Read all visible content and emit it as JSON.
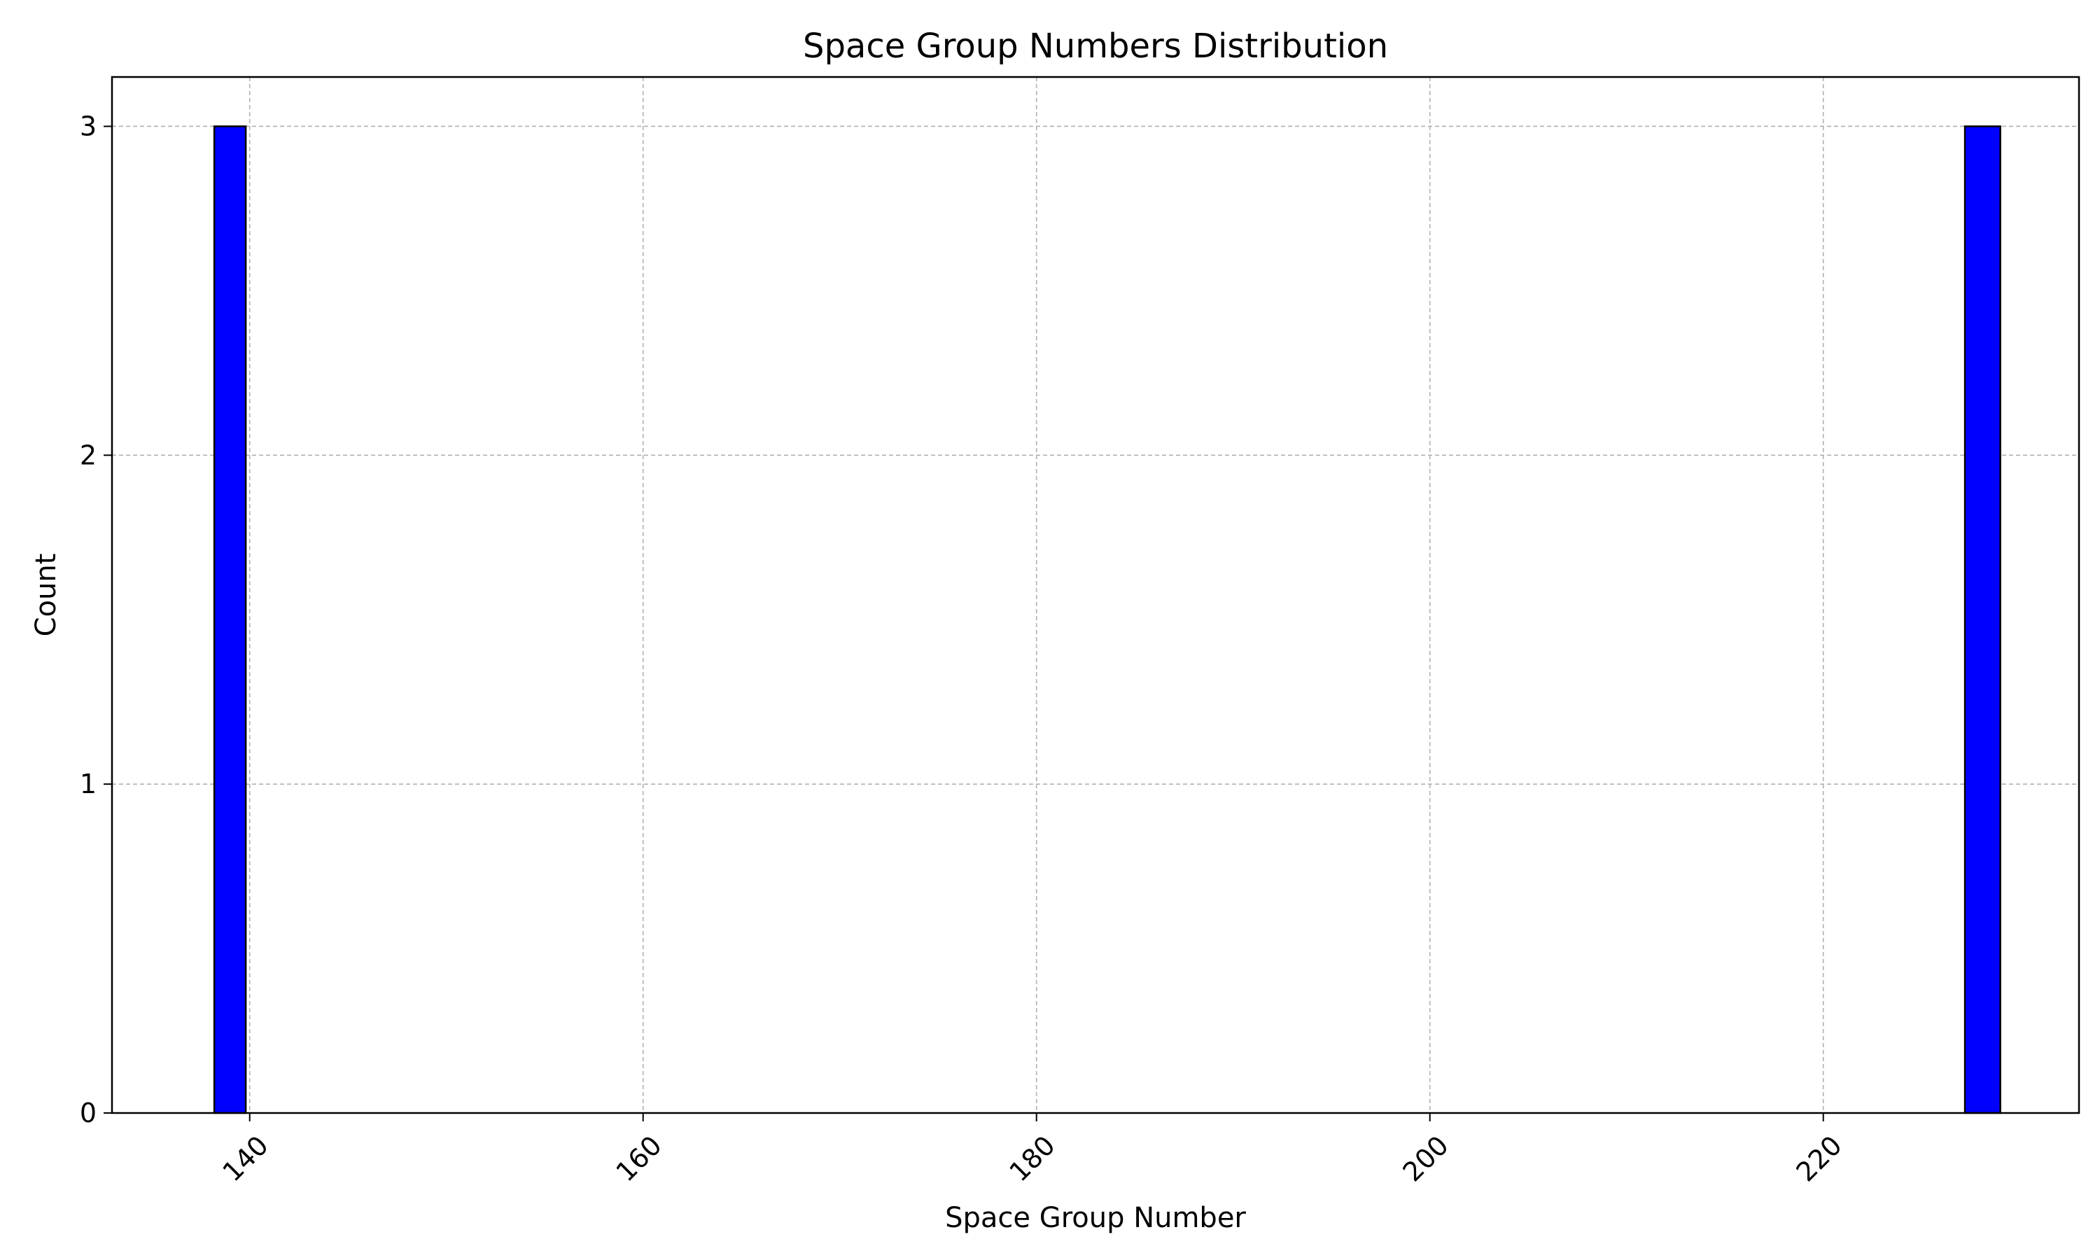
{
  "chart_data": {
    "type": "bar",
    "title": "Space Group Numbers Distribution",
    "xlabel": "Space Group Number",
    "ylabel": "Count",
    "bars": [
      {
        "x_start": 138.2,
        "x_end": 139.8,
        "value": 3
      },
      {
        "x_start": 227.2,
        "x_end": 229.0,
        "value": 3
      }
    ],
    "xlim": [
      133,
      233
    ],
    "ylim": [
      0,
      3.15
    ],
    "xticks": [
      140,
      160,
      180,
      200,
      220
    ],
    "xtick_labels": [
      "140",
      "160",
      "180",
      "200",
      "220"
    ],
    "yticks": [
      0,
      1,
      2,
      3
    ],
    "ytick_labels": [
      "0",
      "1",
      "2",
      "3"
    ],
    "xtick_rotation": 45,
    "grid": true,
    "bar_color": "#0000ff",
    "edge_color": "#000000",
    "grid_color": "#b0b0b0"
  }
}
